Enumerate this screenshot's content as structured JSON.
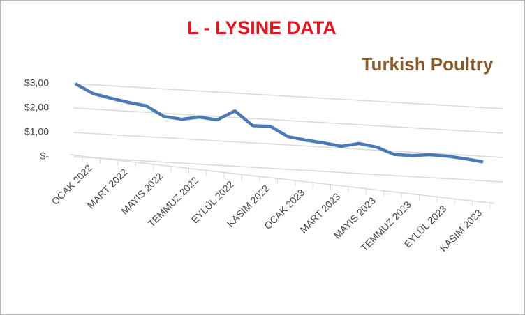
{
  "chart_data": {
    "type": "line",
    "title": "L - LYSINE DATA",
    "logo": "Turkish Poultry",
    "categories": [
      "OCAK 2022",
      null,
      "MART 2022",
      null,
      "MAYIS 2022",
      null,
      "TEMMUZ 2022",
      null,
      "EYLÜL 2022",
      null,
      "KASIM 2022",
      null,
      "OCAK 2023",
      null,
      "MART 2023",
      null,
      "MAYIS 2023",
      null,
      "TEMMUZ 2023",
      null,
      "EYLÜL 2023",
      null,
      "KASIM 2023",
      null
    ],
    "values": [
      3.0,
      2.64,
      2.49,
      2.36,
      2.26,
      1.87,
      1.8,
      1.93,
      1.86,
      2.27,
      1.71,
      1.72,
      1.34,
      1.24,
      1.17,
      1.07,
      1.23,
      1.12,
      0.86,
      0.86,
      0.94,
      0.92,
      0.86,
      0.77
    ],
    "color": "#4a7ab5",
    "ylim": [
      0,
      3
    ],
    "yticks": [
      {
        "value": 0,
        "label": "$-"
      },
      {
        "value": 1,
        "label": "$1,00"
      },
      {
        "value": 2,
        "label": "$2,00"
      },
      {
        "value": 3,
        "label": "$3,00"
      }
    ],
    "grid": true
  }
}
